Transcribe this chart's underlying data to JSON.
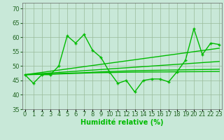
{
  "x": [
    0,
    1,
    2,
    3,
    4,
    5,
    6,
    7,
    8,
    9,
    10,
    11,
    12,
    13,
    14,
    15,
    16,
    17,
    18,
    19,
    20,
    21,
    22,
    23
  ],
  "y_main": [
    47,
    44,
    47,
    47,
    50,
    60.5,
    58,
    61,
    55.5,
    53,
    48,
    44,
    45,
    41,
    45,
    45.5,
    45.5,
    44.5,
    48,
    52,
    63,
    54,
    58,
    57.5
  ],
  "y_line1": [
    47,
    47.4,
    47.8,
    48.2,
    48.6,
    49.0,
    49.4,
    49.8,
    50.2,
    50.6,
    51.0,
    51.4,
    51.8,
    52.2,
    52.6,
    53.0,
    53.4,
    53.8,
    54.2,
    54.6,
    55.0,
    55.4,
    55.8,
    56.2
  ],
  "y_line2": [
    47,
    47.2,
    47.4,
    47.6,
    47.8,
    48.0,
    48.2,
    48.4,
    48.6,
    48.8,
    49.0,
    49.2,
    49.4,
    49.6,
    49.8,
    50.0,
    50.2,
    50.4,
    50.6,
    50.8,
    51.0,
    51.2,
    51.4,
    51.6
  ],
  "y_line3": [
    47,
    47.1,
    47.15,
    47.25,
    47.4,
    47.5,
    47.6,
    47.7,
    47.85,
    48.0,
    48.1,
    48.2,
    48.3,
    48.4,
    48.45,
    48.5,
    48.55,
    48.6,
    48.65,
    48.7,
    48.75,
    48.8,
    48.85,
    48.9
  ],
  "y_line4": [
    47,
    47.05,
    47.1,
    47.15,
    47.25,
    47.35,
    47.45,
    47.55,
    47.65,
    47.7,
    47.75,
    47.8,
    47.85,
    47.9,
    47.92,
    47.94,
    47.96,
    47.98,
    48.0,
    48.02,
    48.04,
    48.06,
    48.08,
    48.1
  ],
  "line_color": "#00bb00",
  "bg_color": "#c8e8d8",
  "grid_color": "#99bb99",
  "ylim": [
    35,
    72
  ],
  "yticks": [
    35,
    40,
    45,
    50,
    55,
    60,
    65,
    70
  ],
  "xlim": [
    -0.3,
    23.3
  ],
  "xlabel": "Humidité relative (%)",
  "linewidth": 1.0,
  "xlabel_fontsize": 7,
  "tick_fontsize": 6
}
